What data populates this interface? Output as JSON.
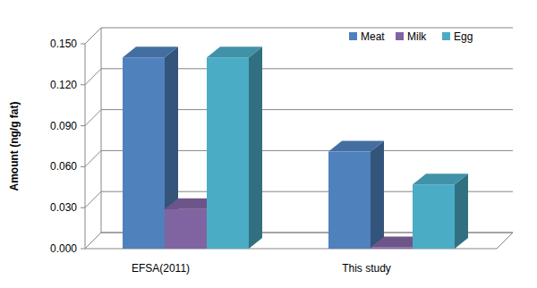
{
  "chart_data": {
    "type": "bar",
    "y_label": "Amount (ng/g fat)",
    "categories": [
      "EFSA(2011)",
      "This study"
    ],
    "series": [
      {
        "name": "Meat",
        "color": "#4f81bd",
        "values": [
          0.14,
          0.071
        ]
      },
      {
        "name": "Milk",
        "color": "#8064a2",
        "values": [
          0.029,
          0.001
        ]
      },
      {
        "name": "Egg",
        "color": "#4bacc6",
        "values": [
          0.14,
          0.047
        ]
      }
    ],
    "ylim": [
      0,
      0.15
    ],
    "yticks": [
      {
        "value": 0,
        "label": "0.000"
      },
      {
        "value": 0.03,
        "label": "0.030"
      },
      {
        "value": 0.06,
        "label": "0.060"
      },
      {
        "value": 0.09,
        "label": "0.090"
      },
      {
        "value": 0.12,
        "label": "0.120"
      },
      {
        "value": 0.15,
        "label": "0.150"
      }
    ],
    "grid": true,
    "legend": "upper right"
  }
}
